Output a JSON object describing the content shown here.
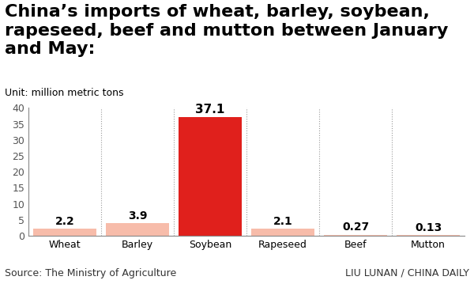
{
  "chart_data": {
    "type": "bar",
    "title": "China’s imports of wheat, barley, soybean, rapeseed, beef and mutton between January and May:",
    "subtitle": "Unit: million metric tons",
    "categories": [
      "Wheat",
      "Barley",
      "Soybean",
      "Rapeseed",
      "Beef",
      "Mutton"
    ],
    "values": [
      2.2,
      3.9,
      37.1,
      2.1,
      0.27,
      0.13
    ],
    "colors": [
      "#f7bcaa",
      "#f7bcaa",
      "#e0201c",
      "#f7bcaa",
      "#f7bcaa",
      "#f7bcaa"
    ],
    "ylim": [
      0,
      40
    ],
    "yticks": [
      0,
      5,
      10,
      15,
      20,
      25,
      30,
      35,
      40
    ],
    "data_labels": true,
    "source": "Source: The Ministry of Agriculture",
    "credit": "LIU LUNAN / CHINA DAILY"
  }
}
